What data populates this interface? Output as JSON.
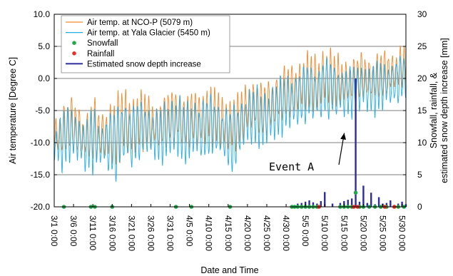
{
  "chart_data": {
    "type": "line",
    "title": "",
    "xlabel": "Date and Time",
    "ylabel": "Air temperature [Degree C]",
    "y2label_lines": [
      "Snowfall, rainfall, &",
      "estimated snow depth increase [mm]"
    ],
    "ylim": [
      -20,
      10
    ],
    "y2lim": [
      0,
      30
    ],
    "yticks": [
      -20.0,
      -15.0,
      -10.0,
      -5.0,
      0.0,
      5.0,
      10.0
    ],
    "ytick_labels": [
      "-20.0",
      "-15.0",
      "-10.0",
      "-5.0",
      "0.0",
      "5.0",
      "10.0"
    ],
    "y2ticks": [
      0,
      5,
      10,
      15,
      20,
      25,
      30
    ],
    "y2tick_labels": [
      "0",
      "5",
      "10",
      "15",
      "20",
      "25",
      "30"
    ],
    "xlim_days": [
      0,
      91
    ],
    "xticks_days": [
      0,
      5,
      10,
      15,
      20,
      25,
      30,
      35,
      40,
      45,
      50,
      55,
      60,
      65,
      70,
      75,
      80,
      85,
      90
    ],
    "xtick_labels": [
      "3/1 0:00",
      "3/6 0:00",
      "3/11 0:00",
      "3/16 0:00",
      "3/21 0:00",
      "3/26 0:00",
      "3/31 0:00",
      "4/5 0:00",
      "4/10 0:00",
      "4/15 0:00",
      "4/20 0:00",
      "4/25 0:00",
      "4/30 0:00",
      "5/5 0:00",
      "5/10 0:00",
      "5/15 0:00",
      "5/20 0:00",
      "5/25 0:00",
      "5/30 0:00"
    ],
    "grid": "horizontal",
    "legend_position": "top-left",
    "series": [
      {
        "name": "Air temp. at NCO-P (5079 m)",
        "color": "#f08a30",
        "axis": "left",
        "x_days": [
          0,
          2,
          4,
          6,
          8,
          10,
          12,
          14,
          16,
          18,
          20,
          22,
          24,
          26,
          28,
          30,
          32,
          34,
          36,
          38,
          40,
          42,
          44,
          46,
          48,
          50,
          52,
          54,
          56,
          58,
          60,
          62,
          64,
          66,
          68,
          70,
          72,
          74,
          76,
          78,
          80,
          82,
          84,
          86,
          88,
          90
        ],
        "daily_min": [
          -11,
          -12.5,
          -11,
          -12,
          -12.5,
          -13,
          -12,
          -13,
          -14,
          -11,
          -12.5,
          -11,
          -10.5,
          -11,
          -11,
          -10,
          -10.5,
          -11,
          -10,
          -11,
          -10,
          -10,
          -11,
          -11.5,
          -10,
          -8.5,
          -8,
          -9,
          -8.5,
          -7,
          -6,
          -6,
          -5,
          -4.5,
          -5,
          -4,
          -4,
          -4,
          -4,
          -3,
          -3,
          -3.5,
          -3,
          -2.5,
          -2,
          -1
        ],
        "daily_max": [
          -7,
          -4,
          -3,
          -4,
          -6,
          -2.5,
          -6,
          -4,
          -3,
          -1.5,
          -3,
          -2,
          -2.5,
          -4,
          -3,
          -2,
          -1,
          -3,
          -2,
          -2,
          -1,
          -2,
          -3,
          -3,
          -2.5,
          -0.5,
          0,
          -1,
          0,
          1,
          2,
          2,
          3,
          4,
          3,
          5,
          4,
          3,
          3,
          3,
          4,
          3,
          4,
          4,
          4,
          5
        ]
      },
      {
        "name": "Air temp. at Yala Glacier (5450 m)",
        "color": "#27aee6",
        "axis": "left",
        "x_days": [
          0,
          2,
          4,
          6,
          8,
          10,
          12,
          14,
          16,
          18,
          20,
          22,
          24,
          26,
          28,
          30,
          32,
          34,
          36,
          38,
          40,
          42,
          44,
          46,
          48,
          50,
          52,
          54,
          56,
          58,
          60,
          62,
          64,
          66,
          68,
          70,
          72,
          74,
          76,
          78,
          80,
          82,
          84,
          86,
          88,
          90
        ],
        "daily_min": [
          -13,
          -14,
          -12.5,
          -13,
          -14,
          -14.5,
          -13.5,
          -14.5,
          -16,
          -13,
          -14,
          -12.5,
          -12,
          -12.5,
          -13,
          -12,
          -12.5,
          -13,
          -12,
          -13,
          -12,
          -12,
          -13,
          -15,
          -12,
          -10.5,
          -10,
          -11,
          -10,
          -9,
          -8,
          -8,
          -7,
          -6.5,
          -7,
          -6,
          -6,
          -6,
          -6,
          -5,
          -5,
          -5.5,
          -5,
          -4.5,
          -4,
          -3
        ],
        "daily_max": [
          -8.5,
          -5.5,
          -4.5,
          -5.5,
          -7.5,
          -4,
          -7.5,
          -5.5,
          -4.5,
          -3,
          -4.5,
          -3.5,
          -4,
          -5.5,
          -4.5,
          -3.5,
          -2.5,
          -4.5,
          -3.5,
          -3.5,
          -2.5,
          -3.5,
          -4.5,
          -4.5,
          -4,
          -2,
          -1.5,
          -2.5,
          -1.5,
          -0.5,
          0.5,
          0.5,
          1.5,
          2.5,
          1.5,
          3.5,
          2.5,
          1.5,
          1.5,
          1.5,
          2.5,
          1.5,
          2.5,
          2.5,
          2.5,
          3.5
        ]
      },
      {
        "name": "Snowfall",
        "color": "#22a84a",
        "axis": "right",
        "marker": "dot",
        "x_days": [
          2.5,
          9.5,
          10.5,
          15.0,
          31.5,
          35.5,
          45.5,
          61.5,
          62.2,
          63.0,
          64.0,
          65.0,
          66.0,
          67.0,
          68.0,
          74.0,
          75.0,
          76.0,
          77.0,
          78.0,
          79.0,
          80.0,
          81.5,
          83.0,
          84.5,
          86.0,
          89.0,
          90.5
        ],
        "values": [
          0,
          0,
          0,
          0,
          0,
          0,
          0,
          0,
          0,
          0,
          0,
          0,
          0,
          0,
          0,
          0,
          0,
          0,
          0,
          2.2,
          0,
          0,
          0,
          0,
          0,
          0,
          0,
          0
        ]
      },
      {
        "name": "Rainfall",
        "color": "#e8302a",
        "axis": "right",
        "marker": "dot",
        "x_days": [
          68.5,
          77.5,
          78.5,
          85.5,
          88.0
        ],
        "values": [
          0,
          0,
          0,
          0,
          0
        ]
      },
      {
        "name": "Estimated snow depth increase",
        "color": "#2c2c9e",
        "axis": "right",
        "marker": "bar",
        "x_days": [
          63.0,
          64.0,
          65.0,
          66.0,
          67.0,
          68.0,
          69.0,
          70.0,
          72.0,
          74.0,
          75.0,
          76.0,
          77.0,
          78.0,
          79.0,
          80.0,
          81.0,
          82.0,
          83.0,
          84.0,
          85.0,
          86.0,
          87.0,
          88.0,
          89.0,
          90.0,
          91.0
        ],
        "values": [
          0.5,
          0.6,
          0.8,
          1.0,
          0.7,
          0.5,
          0.9,
          2.3,
          0.5,
          0.6,
          0.9,
          1.1,
          1.3,
          20.0,
          0.8,
          3.3,
          0.6,
          2.2,
          0.4,
          1.5,
          0.5,
          0.6,
          1.0,
          0.3,
          0.5,
          0.8,
          0.4
        ]
      }
    ],
    "annotations": [
      {
        "text": "Event A",
        "arrow_to_day": 78.0,
        "arrow_to_y2": 11.5
      }
    ]
  }
}
